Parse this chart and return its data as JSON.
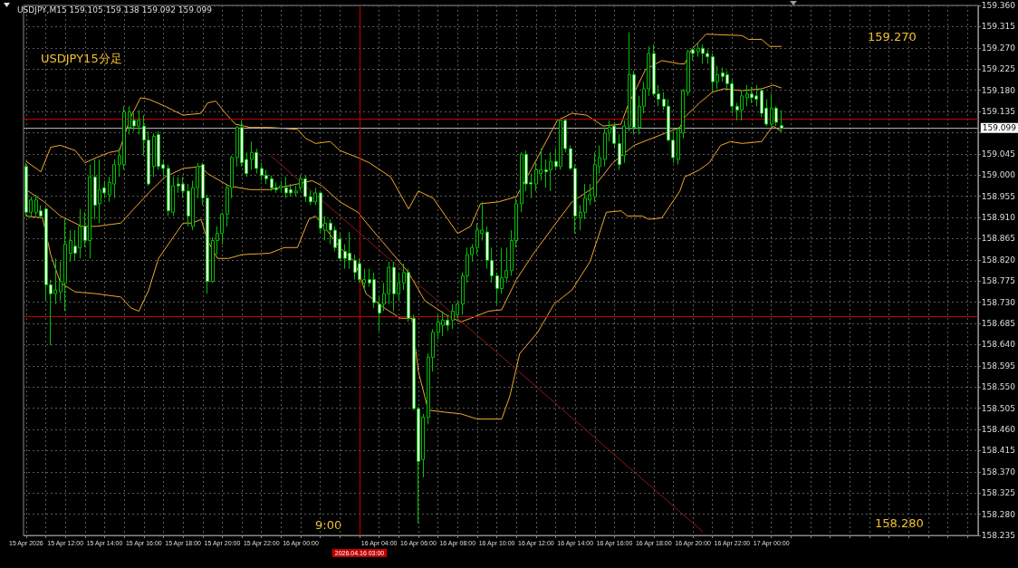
{
  "chart_data": {
    "type": "candlestick",
    "title": "USDJPY,M15 159.105 159.138 159.092 159.099",
    "color": "#00c000",
    "x": [
      "2026-04-15T10:00",
      "2026-04-15T10:15",
      "2026-04-15T10:30",
      "2026-04-15T10:45",
      "2026-04-15T11:00",
      "2026-04-15T11:15",
      "2026-04-15T11:30",
      "2026-04-15T11:45",
      "2026-04-15T12:00",
      "2026-04-15T12:15",
      "2026-04-15T12:30",
      "2026-04-15T12:45",
      "2026-04-15T13:00",
      "2026-04-15T13:15",
      "2026-04-15T13:30",
      "2026-04-15T13:45",
      "2026-04-15T14:00",
      "2026-04-15T14:15",
      "2026-04-15T14:30",
      "2026-04-15T14:45",
      "2026-04-15T15:00",
      "2026-04-15T15:15",
      "2026-04-15T15:30",
      "2026-04-15T15:45",
      "2026-04-15T16:00",
      "2026-04-15T16:15",
      "2026-04-15T16:30",
      "2026-04-15T16:45",
      "2026-04-15T17:00",
      "2026-04-15T17:15",
      "2026-04-15T17:30",
      "2026-04-15T17:45",
      "2026-04-15T18:00",
      "2026-04-15T18:15",
      "2026-04-15T18:30",
      "2026-04-15T18:45",
      "2026-04-15T19:00",
      "2026-04-15T19:15",
      "2026-04-15T19:30",
      "2026-04-15T19:45",
      "2026-04-15T20:00",
      "2026-04-15T20:15",
      "2026-04-15T20:30",
      "2026-04-15T20:45",
      "2026-04-15T21:00",
      "2026-04-15T21:15",
      "2026-04-15T21:30",
      "2026-04-15T21:45",
      "2026-04-15T22:00",
      "2026-04-15T22:15",
      "2026-04-15T22:30",
      "2026-04-15T22:45",
      "2026-04-15T23:00",
      "2026-04-15T23:15",
      "2026-04-15T23:30",
      "2026-04-15T23:45",
      "2026-04-16T00:00",
      "2026-04-16T00:15",
      "2026-04-16T00:30",
      "2026-04-16T00:45",
      "2026-04-16T01:00",
      "2026-04-16T01:15",
      "2026-04-16T01:30",
      "2026-04-16T01:45",
      "2026-04-16T02:00",
      "2026-04-16T02:15",
      "2026-04-16T02:30",
      "2026-04-16T02:45",
      "2026-04-16T03:00",
      "2026-04-16T03:15",
      "2026-04-16T03:30",
      "2026-04-16T03:45",
      "2026-04-16T04:00",
      "2026-04-16T04:15",
      "2026-04-16T04:30",
      "2026-04-16T04:45",
      "2026-04-16T05:00",
      "2026-04-16T05:15",
      "2026-04-16T05:30",
      "2026-04-16T05:45",
      "2026-04-16T06:00",
      "2026-04-16T06:15",
      "2026-04-16T06:30",
      "2026-04-16T06:45",
      "2026-04-16T07:00",
      "2026-04-16T07:15",
      "2026-04-16T07:30",
      "2026-04-16T07:45",
      "2026-04-16T08:00",
      "2026-04-16T08:15",
      "2026-04-16T08:30",
      "2026-04-16T08:45",
      "2026-04-16T09:00",
      "2026-04-16T09:15",
      "2026-04-16T09:30",
      "2026-04-16T09:45",
      "2026-04-16T10:00",
      "2026-04-16T10:15",
      "2026-04-16T10:30",
      "2026-04-16T10:45",
      "2026-04-16T11:00",
      "2026-04-16T11:15",
      "2026-04-16T11:30",
      "2026-04-16T11:45",
      "2026-04-16T12:00",
      "2026-04-16T12:15",
      "2026-04-16T12:30",
      "2026-04-16T12:45",
      "2026-04-16T13:00",
      "2026-04-16T13:15",
      "2026-04-16T13:30",
      "2026-04-16T13:45",
      "2026-04-16T14:00",
      "2026-04-16T14:15",
      "2026-04-16T14:30",
      "2026-04-16T14:45",
      "2026-04-16T15:00",
      "2026-04-16T15:15",
      "2026-04-16T15:30",
      "2026-04-16T15:45",
      "2026-04-16T16:00",
      "2026-04-16T16:15",
      "2026-04-16T16:30",
      "2026-04-16T16:45",
      "2026-04-16T17:00",
      "2026-04-16T17:15",
      "2026-04-16T17:30",
      "2026-04-16T17:45",
      "2026-04-16T18:00",
      "2026-04-16T18:15",
      "2026-04-16T18:30",
      "2026-04-16T18:45",
      "2026-04-16T19:00",
      "2026-04-16T19:15",
      "2026-04-16T19:30",
      "2026-04-16T19:45",
      "2026-04-16T20:00",
      "2026-04-16T20:15",
      "2026-04-16T20:30",
      "2026-04-16T20:45",
      "2026-04-16T21:00",
      "2026-04-16T21:15",
      "2026-04-16T21:30",
      "2026-04-16T21:45",
      "2026-04-16T22:00",
      "2026-04-16T22:15",
      "2026-04-16T22:30",
      "2026-04-16T22:45",
      "2026-04-16T23:00",
      "2026-04-16T23:15",
      "2026-04-16T23:30",
      "2026-04-16T23:45",
      "2026-04-17T00:00",
      "2026-04-17T00:15",
      "2026-04-17T00:30"
    ],
    "ohlc": [
      [
        159.018,
        159.026,
        158.913,
        158.921
      ],
      [
        158.921,
        158.954,
        158.909,
        158.947
      ],
      [
        158.921,
        158.958,
        158.913,
        158.947
      ],
      [
        158.924,
        158.936,
        158.909,
        158.913
      ],
      [
        158.928,
        158.932,
        158.733,
        158.767
      ],
      [
        158.767,
        158.778,
        158.639,
        158.748
      ],
      [
        158.748,
        158.823,
        158.726,
        158.756
      ],
      [
        158.752,
        158.816,
        158.733,
        158.774
      ],
      [
        158.771,
        158.906,
        158.711,
        158.853
      ],
      [
        158.834,
        158.883,
        158.816,
        158.861
      ],
      [
        158.849,
        158.883,
        158.819,
        158.834
      ],
      [
        158.846,
        158.928,
        158.823,
        158.891
      ],
      [
        158.891,
        158.921,
        158.846,
        158.861
      ],
      [
        158.861,
        159.022,
        158.823,
        158.996
      ],
      [
        158.996,
        159.033,
        158.906,
        158.936
      ],
      [
        158.939,
        159.033,
        158.898,
        158.969
      ],
      [
        158.973,
        158.988,
        158.951,
        158.962
      ],
      [
        158.958,
        158.996,
        158.943,
        158.984
      ],
      [
        158.981,
        159.033,
        158.951,
        159.022
      ],
      [
        159.022,
        159.056,
        158.996,
        159.041
      ],
      [
        159.022,
        159.146,
        159.011,
        159.134
      ],
      [
        159.101,
        159.146,
        159.086,
        159.134
      ],
      [
        159.116,
        159.131,
        159.093,
        159.104
      ],
      [
        159.104,
        159.138,
        159.086,
        159.116
      ],
      [
        159.104,
        159.127,
        159.041,
        159.074
      ],
      [
        159.074,
        159.093,
        158.977,
        158.981
      ],
      [
        159.018,
        159.089,
        158.996,
        159.082
      ],
      [
        159.086,
        159.093,
        159.011,
        159.018
      ],
      [
        159.022,
        159.033,
        158.996,
        159.014
      ],
      [
        159.014,
        159.022,
        158.913,
        158.924
      ],
      [
        158.921,
        158.996,
        158.913,
        158.977
      ],
      [
        158.981,
        158.996,
        158.962,
        158.977
      ],
      [
        158.981,
        158.996,
        158.951,
        158.966
      ],
      [
        158.966,
        158.981,
        158.891,
        158.913
      ],
      [
        158.891,
        158.988,
        158.883,
        158.973
      ],
      [
        158.973,
        159.026,
        158.951,
        159.018
      ],
      [
        159.022,
        159.026,
        158.936,
        158.951
      ],
      [
        158.951,
        158.958,
        158.748,
        158.774
      ],
      [
        158.774,
        158.868,
        158.771,
        158.861
      ],
      [
        158.861,
        158.891,
        158.831,
        158.876
      ],
      [
        158.876,
        158.921,
        158.853,
        158.917
      ],
      [
        158.917,
        158.981,
        158.891,
        158.973
      ],
      [
        158.973,
        159.041,
        158.951,
        159.037
      ],
      [
        159.037,
        159.104,
        159.018,
        159.101
      ],
      [
        159.101,
        159.116,
        159.018,
        159.026
      ],
      [
        159.033,
        159.048,
        158.996,
        159.003
      ],
      [
        159.033,
        159.071,
        159.011,
        159.048
      ],
      [
        159.048,
        159.056,
        159.003,
        159.014
      ],
      [
        159.014,
        159.026,
        158.988,
        158.999
      ],
      [
        158.999,
        159.011,
        158.981,
        158.992
      ],
      [
        158.992,
        158.999,
        158.966,
        158.973
      ],
      [
        158.973,
        158.984,
        158.962,
        158.969
      ],
      [
        158.973,
        158.988,
        158.962,
        158.977
      ],
      [
        158.973,
        158.996,
        158.951,
        158.962
      ],
      [
        158.969,
        158.981,
        158.954,
        158.962
      ],
      [
        158.962,
        158.977,
        158.954,
        158.966
      ],
      [
        158.973,
        158.999,
        158.966,
        158.992
      ],
      [
        158.992,
        158.999,
        158.943,
        158.954
      ],
      [
        158.954,
        158.966,
        158.936,
        158.943
      ],
      [
        158.943,
        158.973,
        158.936,
        158.962
      ],
      [
        158.962,
        158.966,
        158.876,
        158.887
      ],
      [
        158.883,
        158.913,
        158.861,
        158.898
      ],
      [
        158.898,
        158.906,
        158.853,
        158.883
      ],
      [
        158.883,
        158.891,
        158.838,
        158.846
      ],
      [
        158.864,
        158.876,
        158.816,
        158.823
      ],
      [
        158.838,
        158.853,
        158.801,
        158.823
      ],
      [
        158.834,
        158.879,
        158.801,
        158.819
      ],
      [
        158.819,
        158.831,
        158.778,
        158.793
      ],
      [
        158.812,
        158.823,
        158.771,
        158.778
      ],
      [
        158.771,
        158.801,
        158.756,
        158.778
      ],
      [
        158.778,
        158.801,
        158.763,
        158.771
      ],
      [
        158.778,
        158.793,
        158.718,
        158.729
      ],
      [
        158.726,
        158.741,
        158.669,
        158.707
      ],
      [
        158.726,
        158.771,
        158.711,
        158.748
      ],
      [
        158.748,
        158.816,
        158.726,
        158.804
      ],
      [
        158.804,
        158.816,
        158.711,
        158.748
      ],
      [
        158.748,
        158.793,
        158.733,
        158.771
      ],
      [
        158.771,
        158.812,
        158.756,
        158.793
      ],
      [
        158.793,
        158.801,
        158.688,
        158.696
      ],
      [
        158.696,
        158.703,
        158.501,
        158.504
      ],
      [
        158.504,
        158.508,
        158.261,
        158.392
      ],
      [
        158.396,
        158.493,
        158.358,
        158.486
      ],
      [
        158.486,
        158.621,
        158.471,
        158.613
      ],
      [
        158.613,
        158.673,
        158.583,
        158.666
      ],
      [
        158.666,
        158.703,
        158.651,
        158.688
      ],
      [
        158.681,
        158.711,
        158.658,
        158.692
      ],
      [
        158.692,
        158.703,
        158.669,
        158.681
      ],
      [
        158.692,
        158.726,
        158.673,
        158.711
      ],
      [
        158.703,
        158.733,
        158.696,
        158.726
      ],
      [
        158.726,
        158.793,
        158.703,
        158.786
      ],
      [
        158.786,
        158.846,
        158.771,
        158.831
      ],
      [
        158.831,
        158.853,
        158.816,
        158.846
      ],
      [
        158.846,
        158.898,
        158.831,
        158.883
      ],
      [
        158.876,
        158.943,
        158.861,
        158.883
      ],
      [
        158.879,
        158.891,
        158.801,
        158.819
      ],
      [
        158.819,
        158.846,
        158.771,
        158.786
      ],
      [
        158.786,
        158.793,
        158.726,
        158.759
      ],
      [
        158.759,
        158.846,
        158.748,
        158.782
      ],
      [
        158.782,
        158.846,
        158.771,
        158.797
      ],
      [
        158.797,
        158.883,
        158.786,
        158.861
      ],
      [
        158.861,
        158.951,
        158.846,
        158.939
      ],
      [
        158.939,
        159.048,
        158.921,
        159.044
      ],
      [
        159.044,
        159.052,
        158.966,
        158.981
      ],
      [
        158.984,
        159.003,
        158.951,
        158.981
      ],
      [
        158.981,
        159.026,
        158.966,
        159.011
      ],
      [
        159.003,
        159.056,
        158.988,
        159.011
      ],
      [
        159.011,
        159.033,
        158.973,
        159.007
      ],
      [
        159.011,
        159.048,
        158.966,
        159.029
      ],
      [
        159.029,
        159.056,
        159.011,
        159.018
      ],
      [
        159.018,
        159.119,
        159.011,
        159.116
      ],
      [
        159.116,
        159.119,
        159.048,
        159.056
      ],
      [
        159.056,
        159.063,
        159.011,
        159.014
      ],
      [
        159.014,
        159.022,
        158.876,
        158.913
      ],
      [
        158.909,
        158.936,
        158.883,
        158.921
      ],
      [
        158.921,
        158.981,
        158.906,
        158.951
      ],
      [
        158.947,
        158.981,
        158.936,
        158.958
      ],
      [
        158.954,
        159.048,
        158.943,
        159.022
      ],
      [
        159.018,
        159.063,
        159.003,
        159.037
      ],
      [
        159.033,
        159.101,
        159.018,
        159.089
      ],
      [
        159.089,
        159.116,
        159.071,
        159.101
      ],
      [
        159.104,
        159.112,
        159.056,
        159.067
      ],
      [
        159.067,
        159.086,
        159.011,
        159.022
      ],
      [
        159.041,
        159.116,
        159.026,
        159.104
      ],
      [
        159.104,
        159.303,
        159.093,
        159.213
      ],
      [
        159.213,
        159.221,
        159.086,
        159.101
      ],
      [
        159.101,
        159.168,
        159.086,
        159.146
      ],
      [
        159.146,
        159.198,
        159.131,
        159.183
      ],
      [
        159.183,
        159.273,
        159.168,
        159.258
      ],
      [
        159.258,
        159.277,
        159.168,
        159.172
      ],
      [
        159.172,
        159.191,
        159.146,
        159.161
      ],
      [
        159.161,
        159.176,
        159.138,
        159.146
      ],
      [
        159.146,
        159.161,
        159.071,
        159.074
      ],
      [
        159.074,
        159.093,
        159.026,
        159.037
      ],
      [
        159.033,
        159.101,
        159.022,
        159.097
      ],
      [
        159.089,
        159.183,
        159.078,
        159.179
      ],
      [
        159.176,
        159.266,
        159.168,
        159.262
      ],
      [
        159.266,
        159.269,
        159.243,
        159.258
      ],
      [
        159.262,
        159.281,
        159.251,
        159.269
      ],
      [
        159.269,
        159.277,
        159.236,
        159.258
      ],
      [
        159.258,
        159.266,
        159.236,
        159.251
      ],
      [
        159.251,
        159.258,
        159.176,
        159.198
      ],
      [
        159.198,
        159.232,
        159.183,
        159.213
      ],
      [
        159.217,
        159.228,
        159.198,
        159.209
      ],
      [
        159.213,
        159.221,
        159.183,
        159.194
      ],
      [
        159.194,
        159.202,
        159.131,
        159.146
      ],
      [
        159.146,
        159.153,
        159.116,
        159.138
      ],
      [
        159.138,
        159.179,
        159.116,
        159.168
      ],
      [
        159.164,
        159.191,
        159.146,
        159.172
      ],
      [
        159.172,
        159.187,
        159.153,
        159.164
      ],
      [
        159.168,
        159.191,
        159.146,
        159.161
      ],
      [
        159.179,
        159.183,
        159.123,
        159.131
      ],
      [
        159.142,
        159.161,
        159.104,
        159.108
      ],
      [
        159.108,
        159.172,
        159.101,
        159.142
      ],
      [
        159.142,
        159.146,
        159.104,
        159.112
      ],
      [
        159.105,
        159.138,
        159.092,
        159.099
      ]
    ],
    "series": [
      {
        "type": "line",
        "color": "#f0a830",
        "x": [
          "2026-04-15T10:00",
          "2026-04-15T10:45",
          "2026-04-15T11:15",
          "2026-04-15T11:45",
          "2026-04-15T12:30",
          "2026-04-15T13:00",
          "2026-04-15T13:35",
          "2026-04-15T14:15",
          "2026-04-15T14:45",
          "2026-04-15T15:00",
          "2026-04-15T15:20",
          "2026-04-15T15:50",
          "2026-04-15T16:15",
          "2026-04-15T17:05",
          "2026-04-15T18:00",
          "2026-04-15T18:55",
          "2026-04-15T19:15",
          "2026-04-15T19:40",
          "2026-04-15T20:10",
          "2026-04-15T20:40",
          "2026-04-15T21:25",
          "2026-04-15T22:25",
          "2026-04-15T23:50",
          "2026-04-16T00:15",
          "2026-04-16T00:45",
          "2026-04-16T01:30",
          "2026-04-16T02:00",
          "2026-04-16T02:55",
          "2026-04-16T03:30",
          "2026-04-16T04:35",
          "2026-04-16T05:30",
          "2026-04-16T06:00",
          "2026-04-16T06:45",
          "2026-04-16T08:00",
          "2026-04-16T08:40",
          "2026-04-16T09:10",
          "2026-04-16T10:05",
          "2026-04-16T11:00",
          "2026-04-16T11:50",
          "2026-04-16T13:05",
          "2026-04-16T13:50",
          "2026-04-16T14:35",
          "2026-04-16T15:25",
          "2026-04-16T16:20",
          "2026-04-16T16:40",
          "2026-04-16T17:35",
          "2026-04-16T18:25",
          "2026-04-16T19:20",
          "2026-04-16T19:35",
          "2026-04-16T19:55",
          "2026-04-16T20:40",
          "2026-04-16T22:30",
          "2026-04-16T22:50",
          "2026-04-16T23:30",
          "2026-04-16T23:55",
          "2026-04-17T00:15",
          "2026-04-17T00:30"
        ],
        "values": [
          159.029,
          159.007,
          159.059,
          159.063,
          159.052,
          159.026,
          159.037,
          159.048,
          159.052,
          null,
          159.123,
          159.164,
          159.161,
          159.146,
          159.127,
          159.131,
          159.153,
          159.157,
          159.131,
          159.108,
          159.101,
          159.101,
          159.097,
          159.078,
          159.067,
          159.071,
          159.052,
          159.037,
          159.026,
          158.996,
          158.928,
          158.966,
          158.951,
          158.876,
          158.891,
          158.939,
          158.943,
          158.954,
          159.018,
          159.116,
          159.131,
          159.127,
          159.104,
          159.108,
          159.146,
          159.224,
          159.243,
          159.236,
          159.236,
          159.266,
          159.299,
          159.296,
          159.288,
          159.288,
          159.273,
          159.273,
          159.273
        ]
      },
      {
        "type": "line",
        "color": "#f0a830",
        "x": [
          "2026-04-15T10:00",
          "2026-04-15T10:55",
          "2026-04-15T11:45",
          "2026-04-15T12:50",
          "2026-04-15T13:35",
          "2026-04-15T14:50",
          "2026-04-15T15:20",
          "2026-04-15T16:15",
          "2026-04-15T17:05",
          "2026-04-15T18:00",
          "2026-04-15T18:55",
          "2026-04-15T19:15",
          "2026-04-15T20:20",
          "2026-04-15T21:25",
          "2026-04-15T22:25",
          "2026-04-15T23:50",
          "2026-04-16T00:35",
          "2026-04-16T01:05",
          "2026-04-16T02:00",
          "2026-04-16T02:55",
          "2026-04-16T03:30",
          "2026-04-16T04:35",
          "2026-04-16T05:30",
          "2026-04-16T06:20",
          "2026-04-16T07:25",
          "2026-04-16T08:10",
          "2026-04-16T08:40",
          "2026-04-16T09:35",
          "2026-04-16T10:15",
          "2026-04-16T11:00",
          "2026-04-16T11:50",
          "2026-04-16T12:45",
          "2026-04-16T13:50",
          "2026-04-16T14:55",
          "2026-04-16T15:55",
          "2026-04-16T17:00",
          "2026-04-16T17:55",
          "2026-04-16T19:20",
          "2026-04-16T19:35",
          "2026-04-16T20:20",
          "2026-04-16T21:00",
          "2026-04-16T21:35",
          "2026-04-16T22:30",
          "2026-04-16T23:30",
          "2026-04-17T00:05",
          "2026-04-17T00:30"
        ],
        "values": [
          158.969,
          158.943,
          158.913,
          158.891,
          158.891,
          158.898,
          158.921,
          158.962,
          158.996,
          159.014,
          159.018,
          159.003,
          158.977,
          158.969,
          158.969,
          158.981,
          158.988,
          158.977,
          158.943,
          158.921,
          158.891,
          158.838,
          158.793,
          158.733,
          158.703,
          158.688,
          158.696,
          158.711,
          158.714,
          158.778,
          158.831,
          158.883,
          158.943,
          158.973,
          159.026,
          159.063,
          159.078,
          159.101,
          159.123,
          159.153,
          159.176,
          159.183,
          159.179,
          159.183,
          159.191,
          159.185
        ]
      },
      {
        "type": "line",
        "color": "#f0a830",
        "x": [
          "2026-04-15T10:00",
          "2026-04-15T10:50",
          "2026-04-15T11:15",
          "2026-04-15T11:45",
          "2026-04-15T12:30",
          "2026-04-15T13:35",
          "2026-04-15T14:50",
          "2026-04-15T15:20",
          "2026-04-15T15:45",
          "2026-04-15T16:15",
          "2026-04-15T16:45",
          "2026-04-15T17:30",
          "2026-04-15T18:00",
          "2026-04-15T18:30",
          "2026-04-15T18:55",
          "2026-04-15T19:15",
          "2026-04-15T19:45",
          "2026-04-15T20:20",
          "2026-04-15T21:00",
          "2026-04-15T22:25",
          "2026-04-15T23:10",
          "2026-04-15T23:50",
          "2026-04-16T00:25",
          "2026-04-16T00:45",
          "2026-04-16T01:20",
          "2026-04-16T02:00",
          "2026-04-16T02:45",
          "2026-04-16T03:20",
          "2026-04-16T04:15",
          "2026-04-16T05:05",
          "2026-04-16T05:40",
          "2026-04-16T06:00",
          "2026-04-16T06:30",
          "2026-04-16T07:15",
          "2026-04-16T08:10",
          "2026-04-16T09:00",
          "2026-04-16T10:15",
          "2026-04-16T10:40",
          "2026-04-16T11:10",
          "2026-04-16T12:05",
          "2026-04-16T12:55",
          "2026-04-16T13:50",
          "2026-04-16T14:45",
          "2026-04-16T15:35",
          "2026-04-16T16:20",
          "2026-04-16T16:40",
          "2026-04-16T17:25",
          "2026-04-16T17:45",
          "2026-04-16T18:25",
          "2026-04-16T19:20",
          "2026-04-16T19:35",
          "2026-04-16T20:20",
          "2026-04-16T20:50",
          "2026-04-16T21:25",
          "2026-04-16T21:55",
          "2026-04-16T22:30",
          "2026-04-16T23:30",
          "2026-04-17T00:05",
          "2026-04-17T00:30"
        ],
        "values": [
          158.913,
          158.909,
          158.831,
          158.771,
          158.752,
          158.748,
          158.741,
          158.718,
          158.711,
          158.756,
          158.823,
          158.868,
          158.898,
          158.898,
          158.906,
          158.861,
          158.823,
          158.823,
          158.831,
          158.834,
          158.846,
          158.846,
          158.906,
          158.913,
          158.883,
          158.846,
          158.816,
          158.748,
          158.718,
          158.696,
          158.696,
          158.583,
          158.501,
          158.497,
          158.493,
          158.482,
          158.482,
          158.531,
          158.621,
          158.666,
          158.726,
          158.756,
          158.816,
          158.921,
          158.924,
          158.913,
          158.913,
          158.906,
          158.909,
          158.966,
          158.996,
          159.011,
          159.026,
          159.063,
          159.071,
          159.067,
          159.071,
          159.104,
          159.093
        ]
      },
      {
        "type": "line",
        "color": "#8b1a1a",
        "x": [
          "2026-04-15T22:30",
          "2026-04-16T20:30"
        ],
        "values": [
          159.04,
          158.243
        ]
      }
    ],
    "xlim": [
      "2026-04-15T09:52",
      "2026-04-17T10:32"
    ],
    "xticks": [
      {
        "value": "2026-04-15T10:00",
        "label": "15 Apr 2026"
      },
      {
        "value": "2026-04-15T11:00",
        "label": null
      },
      {
        "value": "2026-04-15T12:00",
        "label": "15 Apr 12:00"
      },
      {
        "value": "2026-04-15T13:00",
        "label": null
      },
      {
        "value": "2026-04-15T14:00",
        "label": "15 Apr 14:00"
      },
      {
        "value": "2026-04-15T15:00",
        "label": null
      },
      {
        "value": "2026-04-15T16:00",
        "label": "15 Apr 16:00"
      },
      {
        "value": "2026-04-15T17:00",
        "label": null
      },
      {
        "value": "2026-04-15T18:00",
        "label": "15 Apr 18:00"
      },
      {
        "value": "2026-04-15T19:00",
        "label": null
      },
      {
        "value": "2026-04-15T20:00",
        "label": "15 Apr 20:00"
      },
      {
        "value": "2026-04-15T21:00",
        "label": null
      },
      {
        "value": "2026-04-15T22:00",
        "label": "15 Apr 22:00"
      },
      {
        "value": "2026-04-15T23:00",
        "label": null
      },
      {
        "value": "2026-04-16T00:00",
        "label": "16 Apr 00:00"
      },
      {
        "value": "2026-04-16T01:00",
        "label": null
      },
      {
        "value": "2026-04-16T02:00",
        "label": null
      },
      {
        "value": "2026-04-16T03:00",
        "label": null
      },
      {
        "value": "2026-04-16T04:00",
        "label": "16 Apr 04:00"
      },
      {
        "value": "2026-04-16T05:00",
        "label": null
      },
      {
        "value": "2026-04-16T06:00",
        "label": "16 Apr 06:00"
      },
      {
        "value": "2026-04-16T07:00",
        "label": null
      },
      {
        "value": "2026-04-16T08:00",
        "label": "16 Apr 08:00"
      },
      {
        "value": "2026-04-16T09:00",
        "label": null
      },
      {
        "value": "2026-04-16T10:00",
        "label": "16 Apr 10:00"
      },
      {
        "value": "2026-04-16T11:00",
        "label": null
      },
      {
        "value": "2026-04-16T12:00",
        "label": "16 Apr 12:00"
      },
      {
        "value": "2026-04-16T13:00",
        "label": null
      },
      {
        "value": "2026-04-16T14:00",
        "label": "16 Apr 14:00"
      },
      {
        "value": "2026-04-16T15:00",
        "label": null
      },
      {
        "value": "2026-04-16T16:00",
        "label": "16 Apr 16:00"
      },
      {
        "value": "2026-04-16T17:00",
        "label": null
      },
      {
        "value": "2026-04-16T18:00",
        "label": "16 Apr 18:00"
      },
      {
        "value": "2026-04-16T19:00",
        "label": null
      },
      {
        "value": "2026-04-16T20:00",
        "label": "16 Apr 20:00"
      },
      {
        "value": "2026-04-16T21:00",
        "label": null
      },
      {
        "value": "2026-04-16T22:00",
        "label": "16 Apr 22:00"
      },
      {
        "value": "2026-04-16T23:00",
        "label": null
      },
      {
        "value": "2026-04-17T00:00",
        "label": "17 Apr 00:00"
      },
      {
        "value": "2026-04-17T01:00",
        "label": null
      },
      {
        "value": "2026-04-17T02:00",
        "label": null
      },
      {
        "value": "2026-04-17T03:00",
        "label": null
      },
      {
        "value": "2026-04-17T04:00",
        "label": null
      },
      {
        "value": "2026-04-17T05:00",
        "label": null
      },
      {
        "value": "2026-04-17T06:00",
        "label": null
      },
      {
        "value": "2026-04-17T07:00",
        "label": null
      },
      {
        "value": "2026-04-17T08:00",
        "label": null
      },
      {
        "value": "2026-04-17T09:00",
        "label": null
      },
      {
        "value": "2026-04-17T10:00",
        "label": null
      }
    ],
    "ylim": [
      158.235,
      159.36
    ],
    "yticks": [
      {
        "value": 158.235,
        "label": "158.235"
      },
      {
        "value": 158.28,
        "label": "158.280"
      },
      {
        "value": 158.325,
        "label": "158.325"
      },
      {
        "value": 158.37,
        "label": "158.370"
      },
      {
        "value": 158.415,
        "label": "158.415"
      },
      {
        "value": 158.46,
        "label": "158.460"
      },
      {
        "value": 158.505,
        "label": "158.505"
      },
      {
        "value": 158.55,
        "label": "158.550"
      },
      {
        "value": 158.595,
        "label": "158.595"
      },
      {
        "value": 158.64,
        "label": "158.640"
      },
      {
        "value": 158.685,
        "label": "158.685"
      },
      {
        "value": 158.73,
        "label": "158.730"
      },
      {
        "value": 158.775,
        "label": "158.775"
      },
      {
        "value": 158.82,
        "label": "158.820"
      },
      {
        "value": 158.865,
        "label": "158.865"
      },
      {
        "value": 158.91,
        "label": "158.910"
      },
      {
        "value": 158.955,
        "label": "158.955"
      },
      {
        "value": 159.0,
        "label": "159.000"
      },
      {
        "value": 159.045,
        "label": "159.045"
      },
      {
        "value": 159.09,
        "label": null
      },
      {
        "value": 159.135,
        "label": "159.135"
      },
      {
        "value": 159.18,
        "label": "159.180"
      },
      {
        "value": 159.225,
        "label": "159.225"
      },
      {
        "value": 159.27,
        "label": "159.270"
      },
      {
        "value": 159.315,
        "label": "159.315"
      },
      {
        "value": 159.36,
        "label": "159.360"
      }
    ],
    "ref_lines": [
      {
        "axis": "y",
        "value": 159.121,
        "label": null,
        "color": "#c00000"
      },
      {
        "axis": "y",
        "value": 158.703,
        "label": null,
        "color": "#c00000"
      },
      {
        "axis": "y",
        "value": 159.099,
        "label": "159.099",
        "color": "#b0b0b0"
      },
      {
        "axis": "x",
        "value": "2026-04-16T03:00",
        "label": "2026.04.16 03:00",
        "color": "#c00000"
      }
    ],
    "annotations": [
      "USDJPY15分足",
      "159.270",
      "158.280",
      "9:00"
    ],
    "grid": true
  }
}
